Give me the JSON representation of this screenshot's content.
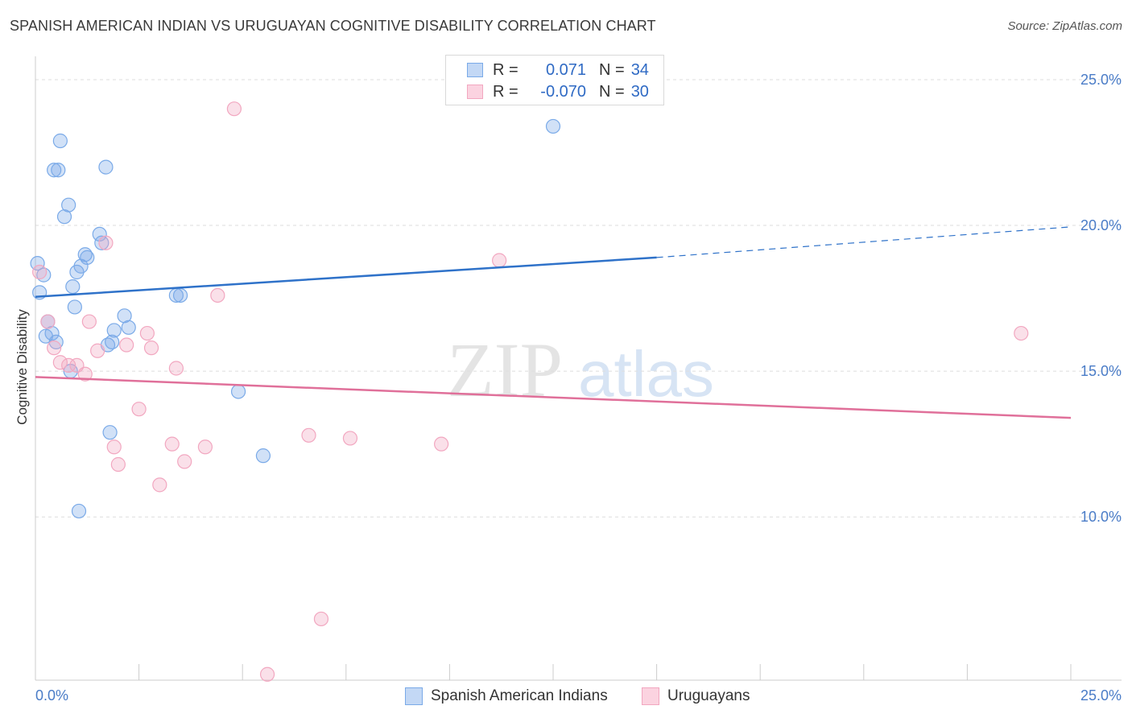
{
  "title": "SPANISH AMERICAN INDIAN VS URUGUAYAN COGNITIVE DISABILITY CORRELATION CHART",
  "source": "Source: ZipAtlas.com",
  "watermark": {
    "zip": "ZIP",
    "atlas": "atlas"
  },
  "legend": {
    "rows": [
      {
        "r_label": "R =",
        "r_value": "0.071",
        "n_label": "N =",
        "n_value": "34"
      },
      {
        "r_label": "R =",
        "r_value": "-0.070",
        "n_label": "N =",
        "n_value": "30"
      }
    ]
  },
  "chart_data": {
    "type": "scatter",
    "ylabel": "Cognitive Disability",
    "xlim": [
      0,
      25
    ],
    "ylim": [
      4.4,
      25.8
    ],
    "x_tick_labels": [
      {
        "value": 0,
        "label": "0.0%"
      },
      {
        "value": 25,
        "label": "25.0%"
      }
    ],
    "y_tick_labels": [
      {
        "value": 10,
        "label": "10.0%"
      },
      {
        "value": 15,
        "label": "15.0%"
      },
      {
        "value": 20,
        "label": "20.0%"
      },
      {
        "value": 25,
        "label": "25.0%"
      }
    ],
    "grid": "horizontal-dashed",
    "series": [
      {
        "name": "Spanish American Indians",
        "color": "#7aaae8",
        "line_color": "#2f72c9",
        "trend": {
          "x": [
            0,
            15
          ],
          "y": [
            17.55,
            18.9
          ],
          "dashed_to": [
            25,
            19.95
          ]
        },
        "points": [
          [
            0.05,
            18.7
          ],
          [
            0.1,
            17.7
          ],
          [
            0.2,
            18.3
          ],
          [
            0.25,
            16.2
          ],
          [
            0.3,
            16.7
          ],
          [
            0.4,
            16.3
          ],
          [
            0.5,
            16.0
          ],
          [
            0.45,
            21.9
          ],
          [
            0.55,
            21.9
          ],
          [
            0.6,
            22.9
          ],
          [
            0.7,
            20.3
          ],
          [
            0.8,
            20.7
          ],
          [
            0.85,
            15.0
          ],
          [
            0.9,
            17.9
          ],
          [
            0.95,
            17.2
          ],
          [
            1.0,
            18.4
          ],
          [
            1.1,
            18.6
          ],
          [
            1.2,
            19.0
          ],
          [
            1.25,
            18.9
          ],
          [
            1.05,
            10.2
          ],
          [
            1.55,
            19.7
          ],
          [
            1.6,
            19.4
          ],
          [
            1.7,
            22.0
          ],
          [
            1.75,
            15.9
          ],
          [
            1.8,
            12.9
          ],
          [
            1.85,
            16.0
          ],
          [
            1.9,
            16.4
          ],
          [
            2.15,
            16.9
          ],
          [
            2.25,
            16.5
          ],
          [
            3.4,
            17.6
          ],
          [
            3.5,
            17.6
          ],
          [
            4.9,
            14.3
          ],
          [
            5.5,
            12.1
          ],
          [
            12.5,
            23.4
          ]
        ]
      },
      {
        "name": "Uruguayans",
        "color": "#f2a7c0",
        "line_color": "#e0709a",
        "trend": {
          "x": [
            0,
            25
          ],
          "y": [
            14.8,
            13.4
          ]
        },
        "points": [
          [
            0.1,
            18.4
          ],
          [
            0.3,
            16.7
          ],
          [
            0.45,
            15.8
          ],
          [
            0.6,
            15.3
          ],
          [
            0.8,
            15.2
          ],
          [
            1.0,
            15.2
          ],
          [
            1.2,
            14.9
          ],
          [
            1.3,
            16.7
          ],
          [
            1.5,
            15.7
          ],
          [
            1.7,
            19.4
          ],
          [
            1.9,
            12.4
          ],
          [
            2.0,
            11.8
          ],
          [
            2.2,
            15.9
          ],
          [
            2.5,
            13.7
          ],
          [
            2.7,
            16.3
          ],
          [
            2.8,
            15.8
          ],
          [
            3.0,
            11.1
          ],
          [
            3.3,
            12.5
          ],
          [
            3.4,
            15.1
          ],
          [
            3.6,
            11.9
          ],
          [
            4.1,
            12.4
          ],
          [
            4.4,
            17.6
          ],
          [
            4.8,
            24.0
          ],
          [
            5.6,
            4.6
          ],
          [
            6.6,
            12.8
          ],
          [
            6.9,
            6.5
          ],
          [
            7.6,
            12.7
          ],
          [
            9.8,
            12.5
          ],
          [
            11.2,
            18.8
          ],
          [
            23.8,
            16.3
          ]
        ]
      }
    ]
  }
}
